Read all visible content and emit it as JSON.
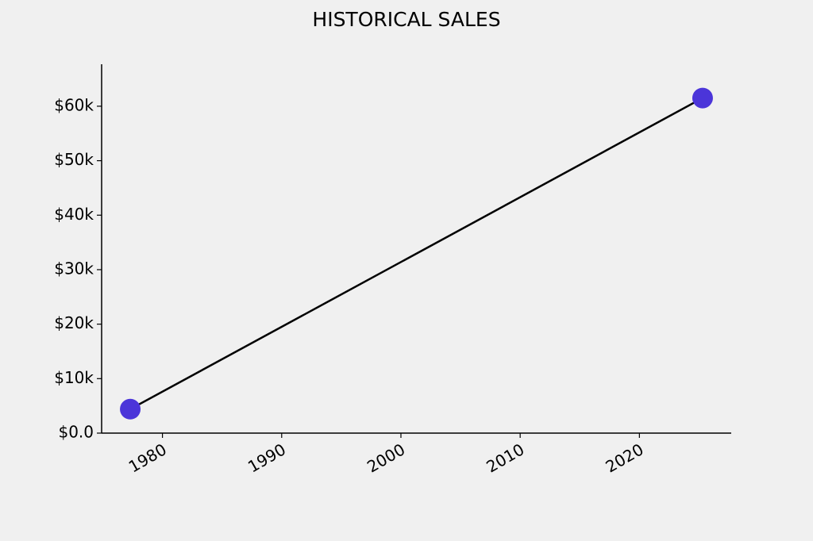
{
  "chart_data": {
    "type": "line",
    "title": "HISTORICAL SALES",
    "x": [
      1977.3,
      2025.3
    ],
    "values": [
      4400,
      61500
    ],
    "line_color": "#000000",
    "marker_color": "#4b35d9",
    "xlim": [
      1974.9,
      2027.7
    ],
    "xticks": [
      1980,
      1990,
      2000,
      2010,
      2020
    ],
    "ylim": [
      0,
      67700
    ],
    "yticks": [
      {
        "value": 0,
        "label": "$0.0"
      },
      {
        "value": 10000,
        "label": "$10k"
      },
      {
        "value": 20000,
        "label": "$20k"
      },
      {
        "value": 30000,
        "label": "$30k"
      },
      {
        "value": 40000,
        "label": "$40k"
      },
      {
        "value": 50000,
        "label": "$50k"
      },
      {
        "value": 60000,
        "label": "$60k"
      }
    ],
    "grid": false
  }
}
